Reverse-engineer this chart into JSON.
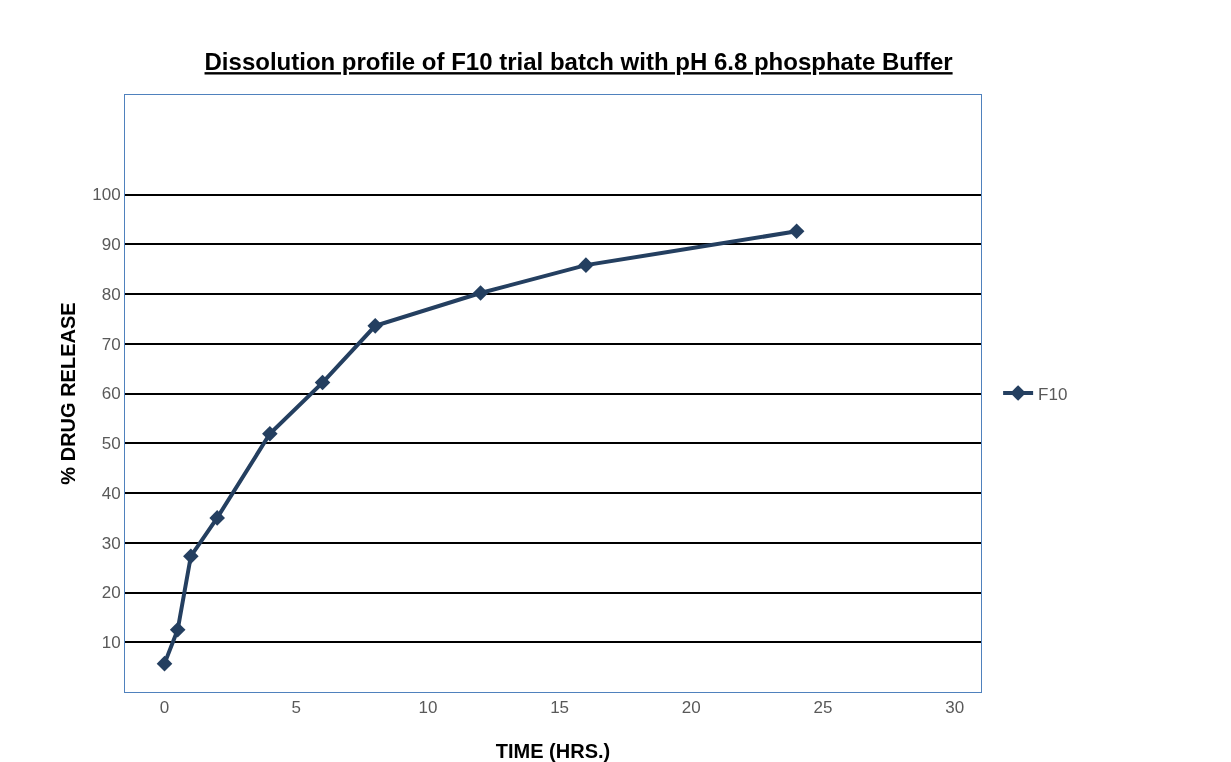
{
  "chart_data": {
    "type": "line",
    "title": "Dissolution profile of F10 trial batch with pH 6.8 phosphate Buffer",
    "xlabel": "TIME (HRS.)",
    "ylabel": "% DRUG RELEASE",
    "x": [
      0,
      0.5,
      1,
      2,
      4,
      6,
      8,
      12,
      16,
      24
    ],
    "series": [
      {
        "name": "F10",
        "color": "#243f60",
        "values": [
          5.7,
          12.5,
          27.3,
          35,
          51.9,
          62.2,
          73.6,
          80.2,
          85.8,
          92.6
        ]
      }
    ],
    "xlim": [
      -1.5,
      31
    ],
    "xticks": [
      0,
      5,
      10,
      15,
      20,
      25,
      30
    ],
    "ylim": [
      0,
      120
    ],
    "yticks": [
      10,
      20,
      30,
      40,
      50,
      60,
      70,
      80,
      90,
      100
    ],
    "grid": "y",
    "legend": "right",
    "marker": "diamond",
    "line_style": "solid"
  }
}
